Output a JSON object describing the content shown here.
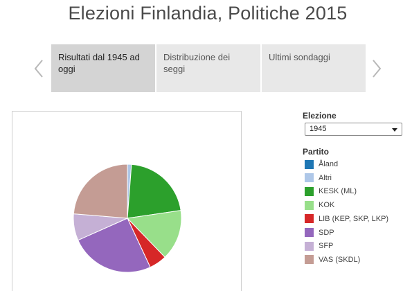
{
  "page": {
    "title": "Elezioni Finlandia, Politiche 2015"
  },
  "tabs": [
    {
      "label": "Risultati dal 1945 ad oggi"
    },
    {
      "label": "Distribuzione dei seggi"
    },
    {
      "label": "Ultimi sondaggi"
    }
  ],
  "icons": {
    "prev": "chevron-left-icon",
    "next": "chevron-right-icon",
    "dropdown": "caret-down-icon"
  },
  "filters": {
    "election_label": "Elezione",
    "election_value": "1945",
    "party_label": "Partito"
  },
  "legend": [
    {
      "label": "Åland",
      "color": "#1f77b4"
    },
    {
      "label": "Altri",
      "color": "#aec7e8"
    },
    {
      "label": "KESK (ML)",
      "color": "#2ca02c"
    },
    {
      "label": "KOK",
      "color": "#98df8a"
    },
    {
      "label": "LIB (KEP, SKP, LKP)",
      "color": "#d62728"
    },
    {
      "label": "SDP",
      "color": "#9467bd"
    },
    {
      "label": "SFP",
      "color": "#c5b0d5"
    },
    {
      "label": "VAS (SKDL)",
      "color": "#c49c94"
    }
  ],
  "chart_data": {
    "type": "pie",
    "slices": [
      {
        "label": "Altri",
        "value": 1.2,
        "color": "#aec7e8"
      },
      {
        "label": "KESK (ML)",
        "value": 21.3,
        "color": "#2ca02c"
      },
      {
        "label": "KOK",
        "value": 15.0,
        "color": "#98df8a"
      },
      {
        "label": "LIB (KEP, SKP, LKP)",
        "value": 5.2,
        "color": "#d62728"
      },
      {
        "label": "SDP",
        "value": 25.1,
        "color": "#9467bd"
      },
      {
        "label": "SFP",
        "value": 7.9,
        "color": "#c5b0d5"
      },
      {
        "label": "VAS (SKDL)",
        "value": 23.5,
        "color": "#c49c94"
      }
    ]
  }
}
